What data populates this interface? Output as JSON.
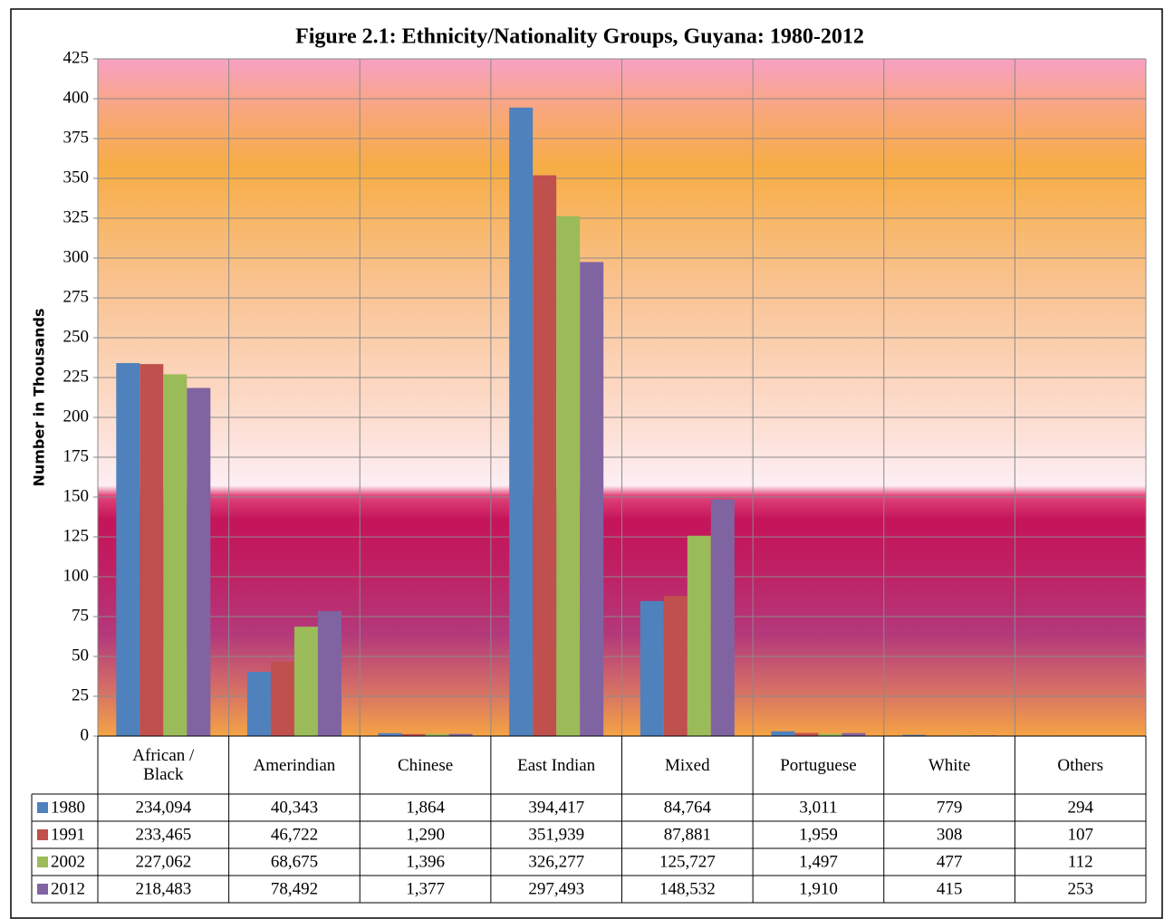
{
  "chart_data": {
    "type": "bar",
    "title": "Figure 2.1: Ethnicity/Nationality Groups, Guyana: 1980-2012",
    "y_label": "Number in Thousands",
    "categories": [
      "African / Black",
      "Amerindian",
      "Chinese",
      "East Indian",
      "Mixed",
      "Portuguese",
      "White",
      "Others"
    ],
    "series": [
      {
        "name": "1980",
        "color": "#4f81bd",
        "values": [
          234.094,
          40.343,
          1.864,
          394.417,
          84.764,
          3.011,
          0.779,
          0.294
        ],
        "value_labels": [
          "234,094",
          "40,343",
          "1,864",
          "394,417",
          "84,764",
          "3,011",
          "779",
          "294"
        ]
      },
      {
        "name": "1991",
        "color": "#c0504d",
        "values": [
          233.465,
          46.722,
          1.29,
          351.939,
          87.881,
          1.959,
          0.308,
          0.107
        ],
        "value_labels": [
          "233,465",
          "46,722",
          "1,290",
          "351,939",
          "87,881",
          "1,959",
          "308",
          "107"
        ]
      },
      {
        "name": "2002",
        "color": "#9bbb59",
        "values": [
          227.062,
          68.675,
          1.396,
          326.277,
          125.727,
          1.497,
          0.477,
          0.112
        ],
        "value_labels": [
          "227,062",
          "68,675",
          "1,396",
          "326,277",
          "125,727",
          "1,497",
          "477",
          "112"
        ]
      },
      {
        "name": "2012",
        "color": "#8064a2",
        "values": [
          218.483,
          78.492,
          1.377,
          297.493,
          148.532,
          1.91,
          0.415,
          0.253
        ],
        "value_labels": [
          "218,483",
          "78,492",
          "1,377",
          "297,493",
          "148,532",
          "1,910",
          "415",
          "253"
        ]
      }
    ],
    "ylim": [
      0,
      425
    ],
    "yticks": [
      0,
      25,
      50,
      75,
      100,
      125,
      150,
      175,
      200,
      225,
      250,
      275,
      300,
      325,
      350,
      375,
      400,
      425
    ],
    "grid": true
  }
}
